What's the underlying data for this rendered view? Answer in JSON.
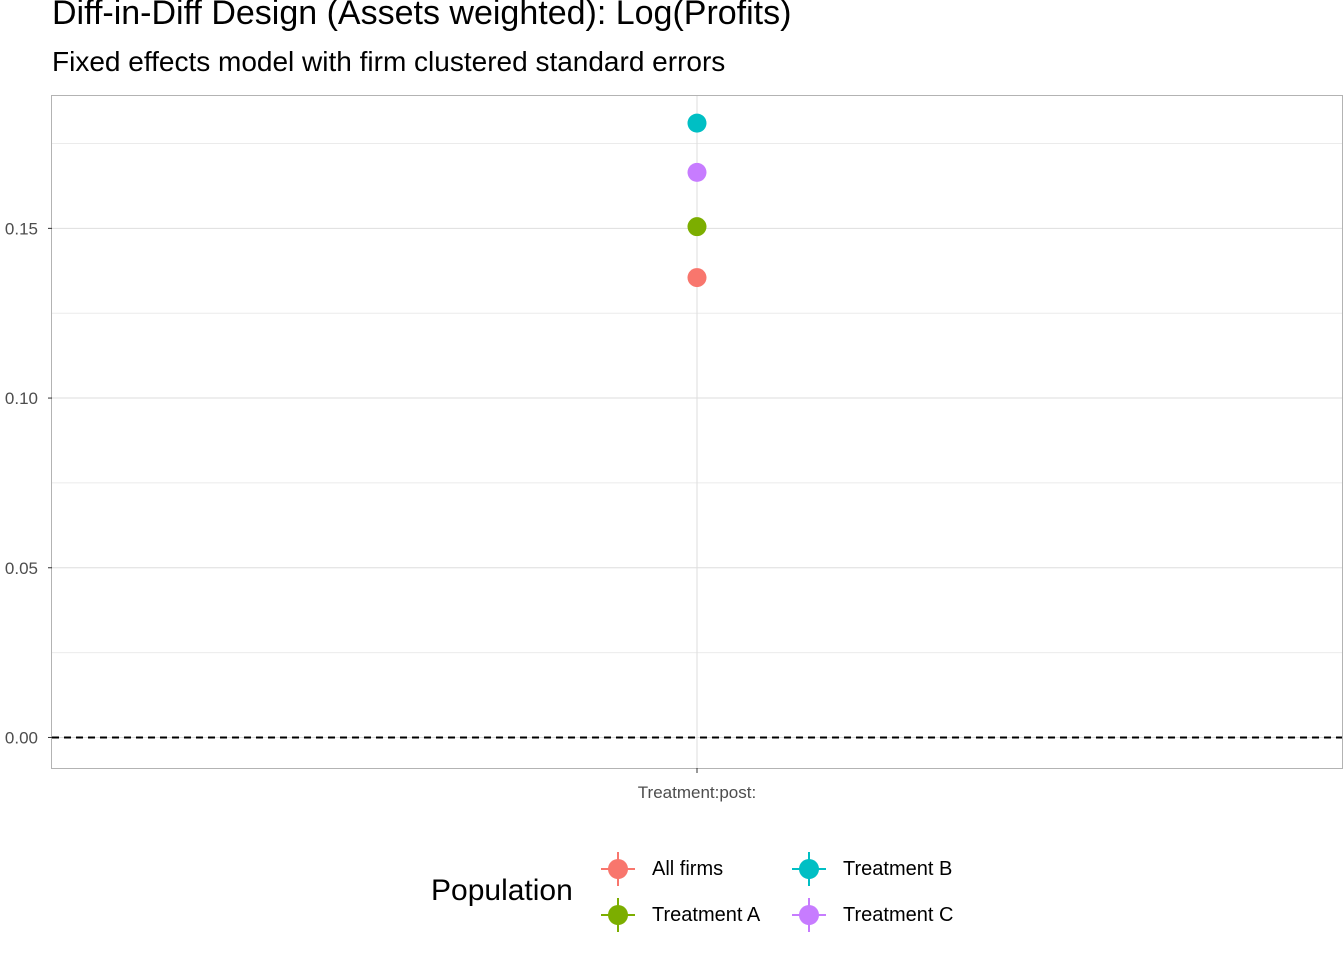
{
  "chart_data": {
    "type": "scatter",
    "title": "Diff-in-Diff Design (Assets weighted): Log(Profits)",
    "subtitle": "Fixed effects model with firm clustered standard errors",
    "xlabel": "",
    "ylabel": "",
    "categories": [
      "Treatment:post:"
    ],
    "ylim": [
      -0.009,
      0.189
    ],
    "y_ticks": [
      "0.00",
      "0.05",
      "0.10",
      "0.15"
    ],
    "reference_line": {
      "y": 0.0,
      "style": "dashed"
    },
    "grid": true,
    "legend_position": "bottom",
    "legend_title": "Population",
    "series": [
      {
        "name": "All firms",
        "color": "#F8766D",
        "values": [
          0.1355
        ]
      },
      {
        "name": "Treatment A",
        "color": "#7CAE00",
        "values": [
          0.1505
        ]
      },
      {
        "name": "Treatment B",
        "color": "#00BFC4",
        "values": [
          0.181
        ]
      },
      {
        "name": "Treatment C",
        "color": "#C77CFF",
        "values": [
          0.1665
        ]
      }
    ]
  }
}
